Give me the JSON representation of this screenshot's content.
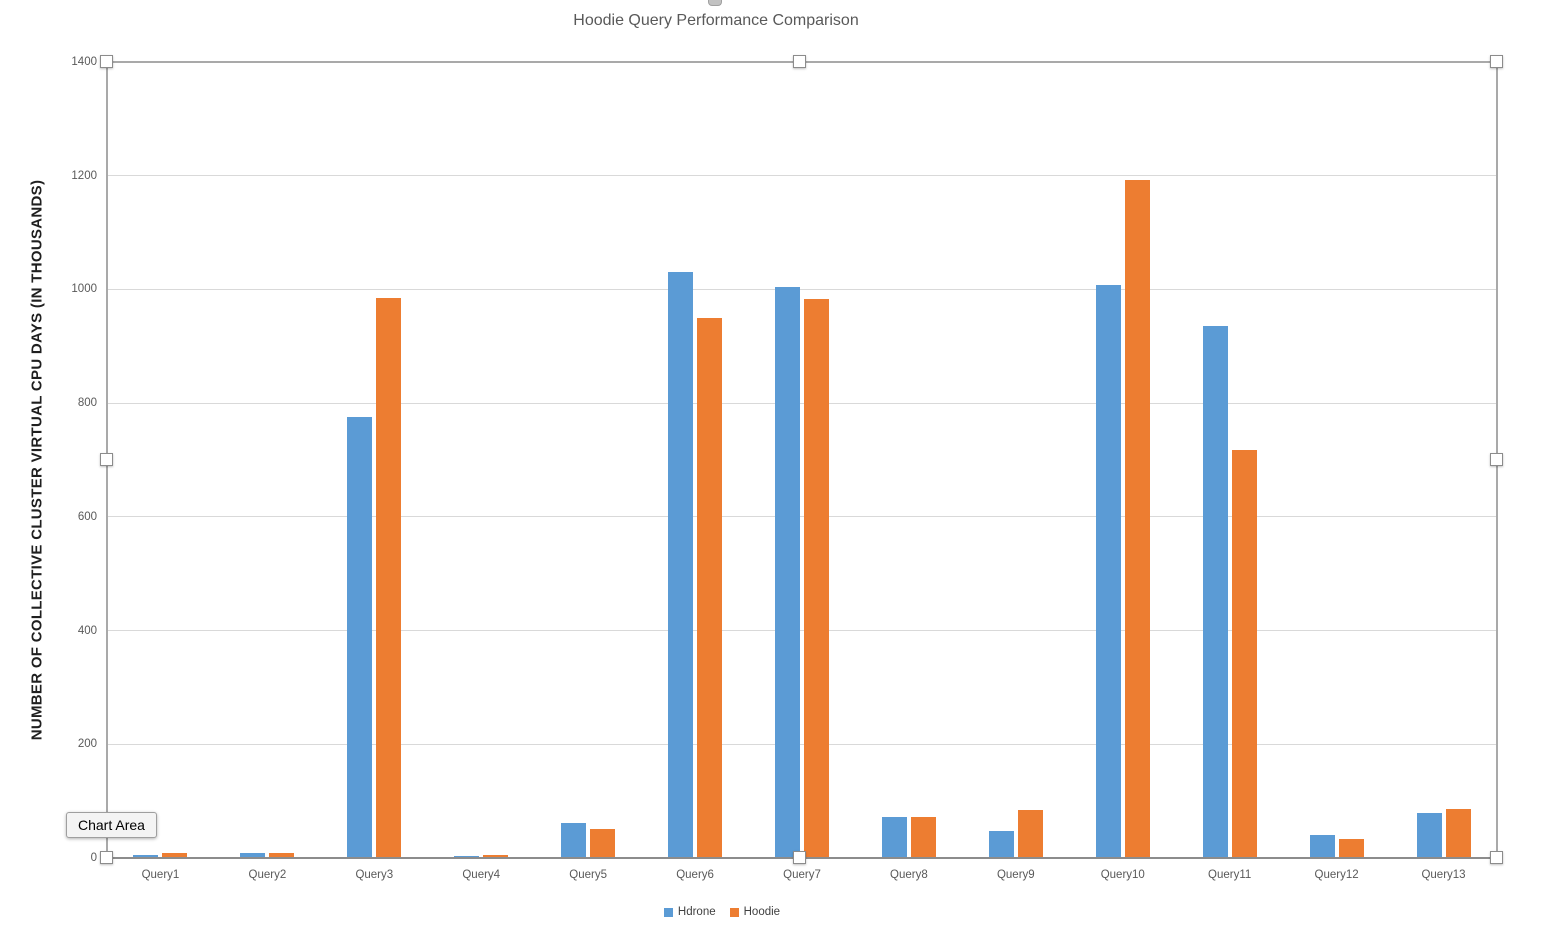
{
  "chart": {
    "title": "Hoodie Query Performance Comparison",
    "y_axis_title": "NUMBER OF COLLECTIVE CLUSTER VIRTUAL CPU DAYS (IN THOUSANDS)"
  },
  "tooltip": {
    "label": "Chart Area"
  },
  "colors": {
    "hdrone": "#5B9BD5",
    "hoodie": "#ED7D31",
    "gridline": "#D9D9D9",
    "axis_text": "#595959",
    "selection_border": "#A9A9A9"
  },
  "selection": {
    "state": "chart-selected",
    "handle_count": 8
  },
  "chart_data": {
    "type": "bar",
    "title": "Hoodie Query Performance Comparison",
    "xlabel": "",
    "ylabel": "NUMBER OF COLLECTIVE CLUSTER VIRTUAL CPU DAYS (IN THOUSANDS)",
    "categories": [
      "Query1",
      "Query2",
      "Query3",
      "Query4",
      "Query5",
      "Query6",
      "Query7",
      "Query8",
      "Query9",
      "Query10",
      "Query11",
      "Query12",
      "Query13"
    ],
    "series": [
      {
        "name": "Hdrone",
        "color": "#5B9BD5",
        "values": [
          5,
          9,
          775,
          4,
          62,
          1030,
          1005,
          72,
          47,
          1008,
          935,
          40,
          79
        ]
      },
      {
        "name": "Hoodie",
        "color": "#ED7D31",
        "values": [
          9,
          8,
          985,
          5,
          51,
          950,
          984,
          72,
          84,
          1193,
          718,
          33,
          86
        ]
      }
    ],
    "ylim": [
      0,
      1400
    ],
    "ytick_step": 200,
    "ytick_labels": [
      "0",
      "200",
      "400",
      "600",
      "800",
      "1000",
      "1200",
      "1400"
    ],
    "grid": true,
    "legend_position": "bottom"
  }
}
